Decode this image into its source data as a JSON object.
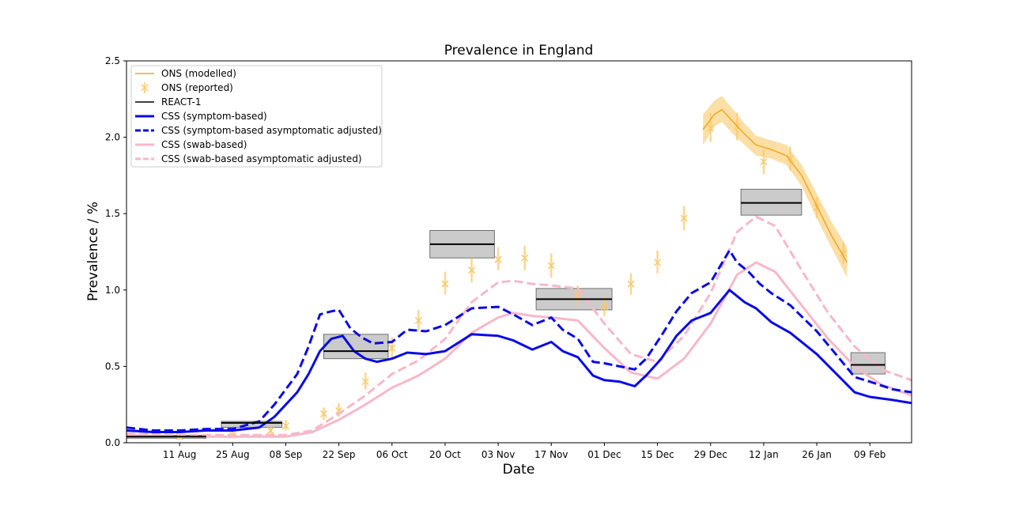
{
  "chart_data": {
    "type": "line",
    "title": "Prevalence in England",
    "xlabel": "Date",
    "ylabel": "Prevalence / %",
    "xlim": [
      "2020-07-28",
      "2021-02-20"
    ],
    "ylim": [
      0,
      2.5
    ],
    "yticks": [
      "0.0",
      "0.5",
      "1.0",
      "1.5",
      "2.0",
      "2.5"
    ],
    "xticks": [
      {
        "date": "2020-08-11",
        "label": "11 Aug"
      },
      {
        "date": "2020-08-25",
        "label": "25 Aug"
      },
      {
        "date": "2020-09-08",
        "label": "08 Sep"
      },
      {
        "date": "2020-09-22",
        "label": "22 Sep"
      },
      {
        "date": "2020-10-06",
        "label": "06 Oct"
      },
      {
        "date": "2020-10-20",
        "label": "20 Oct"
      },
      {
        "date": "2020-11-03",
        "label": "03 Nov"
      },
      {
        "date": "2020-11-17",
        "label": "17 Nov"
      },
      {
        "date": "2020-12-01",
        "label": "01 Dec"
      },
      {
        "date": "2020-12-15",
        "label": "15 Dec"
      },
      {
        "date": "2020-12-29",
        "label": "29 Dec"
      },
      {
        "date": "2021-01-12",
        "label": "12 Jan"
      },
      {
        "date": "2021-01-26",
        "label": "26 Jan"
      },
      {
        "date": "2021-02-09",
        "label": "09 Feb"
      }
    ],
    "grid": false,
    "legend_position": "top-left",
    "colors": {
      "ons": "#f5a623",
      "ons_band": "#f9c96a",
      "react": "#000000",
      "react_box": "#c8c8c8",
      "css_symptom": "#0a0ae6",
      "css_swab": "#f7b8c8"
    },
    "legend": [
      {
        "label": "ONS (modelled)",
        "color": "#f5a623",
        "style": "solid",
        "marker": "none"
      },
      {
        "label": "ONS (reported)",
        "color": "#f9c96a",
        "style": "none",
        "marker": "x"
      },
      {
        "label": "REACT-1",
        "color": "#000000",
        "style": "solid",
        "marker": "none"
      },
      {
        "label": "CSS (symptom-based)",
        "color": "#0a0ae6",
        "style": "solid-thick",
        "marker": "none"
      },
      {
        "label": "CSS (symptom-based asymptomatic adjusted)",
        "color": "#0a0ae6",
        "style": "dashed",
        "marker": "none"
      },
      {
        "label": "CSS (swab-based)",
        "color": "#f7b8c8",
        "style": "solid-thick",
        "marker": "none"
      },
      {
        "label": "CSS (swab-based asymptomatic adjusted)",
        "color": "#f7b8c8",
        "style": "dashed",
        "marker": "none"
      }
    ],
    "series": [
      {
        "name": "CSS (symptom-based)",
        "color": "#0a0ae6",
        "dash": false,
        "points": [
          [
            "2020-07-28",
            0.08
          ],
          [
            "2020-08-04",
            0.07
          ],
          [
            "2020-08-11",
            0.07
          ],
          [
            "2020-08-18",
            0.08
          ],
          [
            "2020-08-25",
            0.08
          ],
          [
            "2020-09-01",
            0.1
          ],
          [
            "2020-09-05",
            0.17
          ],
          [
            "2020-09-08",
            0.25
          ],
          [
            "2020-09-11",
            0.33
          ],
          [
            "2020-09-14",
            0.45
          ],
          [
            "2020-09-17",
            0.6
          ],
          [
            "2020-09-20",
            0.68
          ],
          [
            "2020-09-23",
            0.7
          ],
          [
            "2020-09-26",
            0.6
          ],
          [
            "2020-09-29",
            0.55
          ],
          [
            "2020-10-02",
            0.53
          ],
          [
            "2020-10-06",
            0.55
          ],
          [
            "2020-10-10",
            0.59
          ],
          [
            "2020-10-15",
            0.58
          ],
          [
            "2020-10-20",
            0.6
          ],
          [
            "2020-10-27",
            0.71
          ],
          [
            "2020-11-03",
            0.7
          ],
          [
            "2020-11-07",
            0.67
          ],
          [
            "2020-11-12",
            0.61
          ],
          [
            "2020-11-17",
            0.66
          ],
          [
            "2020-11-20",
            0.6
          ],
          [
            "2020-11-24",
            0.56
          ],
          [
            "2020-11-28",
            0.44
          ],
          [
            "2020-12-01",
            0.41
          ],
          [
            "2020-12-05",
            0.4
          ],
          [
            "2020-12-09",
            0.37
          ],
          [
            "2020-12-12",
            0.44
          ],
          [
            "2020-12-16",
            0.55
          ],
          [
            "2020-12-20",
            0.7
          ],
          [
            "2020-12-24",
            0.8
          ],
          [
            "2020-12-29",
            0.85
          ],
          [
            "2021-01-03",
            1.0
          ],
          [
            "2021-01-07",
            0.92
          ],
          [
            "2021-01-10",
            0.88
          ],
          [
            "2021-01-14",
            0.79
          ],
          [
            "2021-01-19",
            0.72
          ],
          [
            "2021-01-26",
            0.58
          ],
          [
            "2021-02-01",
            0.43
          ],
          [
            "2021-02-05",
            0.33
          ],
          [
            "2021-02-09",
            0.3
          ],
          [
            "2021-02-15",
            0.28
          ],
          [
            "2021-02-20",
            0.26
          ]
        ]
      },
      {
        "name": "CSS (symptom-based asymptomatic adjusted)",
        "color": "#0a0ae6",
        "dash": true,
        "points": [
          [
            "2020-07-28",
            0.1
          ],
          [
            "2020-08-04",
            0.08
          ],
          [
            "2020-08-11",
            0.08
          ],
          [
            "2020-08-18",
            0.09
          ],
          [
            "2020-08-25",
            0.09
          ],
          [
            "2020-09-01",
            0.14
          ],
          [
            "2020-09-05",
            0.25
          ],
          [
            "2020-09-08",
            0.35
          ],
          [
            "2020-09-11",
            0.45
          ],
          [
            "2020-09-14",
            0.63
          ],
          [
            "2020-09-17",
            0.84
          ],
          [
            "2020-09-20",
            0.86
          ],
          [
            "2020-09-22",
            0.87
          ],
          [
            "2020-09-25",
            0.75
          ],
          [
            "2020-09-28",
            0.69
          ],
          [
            "2020-10-01",
            0.65
          ],
          [
            "2020-10-06",
            0.66
          ],
          [
            "2020-10-10",
            0.74
          ],
          [
            "2020-10-15",
            0.73
          ],
          [
            "2020-10-20",
            0.77
          ],
          [
            "2020-10-27",
            0.88
          ],
          [
            "2020-11-03",
            0.89
          ],
          [
            "2020-11-07",
            0.84
          ],
          [
            "2020-11-12",
            0.77
          ],
          [
            "2020-11-17",
            0.82
          ],
          [
            "2020-11-20",
            0.74
          ],
          [
            "2020-11-24",
            0.68
          ],
          [
            "2020-11-28",
            0.53
          ],
          [
            "2020-12-01",
            0.52
          ],
          [
            "2020-12-05",
            0.5
          ],
          [
            "2020-12-09",
            0.48
          ],
          [
            "2020-12-12",
            0.55
          ],
          [
            "2020-12-16",
            0.7
          ],
          [
            "2020-12-20",
            0.86
          ],
          [
            "2020-12-24",
            0.98
          ],
          [
            "2020-12-29",
            1.05
          ],
          [
            "2021-01-03",
            1.26
          ],
          [
            "2021-01-05",
            1.18
          ],
          [
            "2021-01-08",
            1.12
          ],
          [
            "2021-01-11",
            1.04
          ],
          [
            "2021-01-14",
            0.98
          ],
          [
            "2021-01-19",
            0.9
          ],
          [
            "2021-01-26",
            0.73
          ],
          [
            "2021-02-01",
            0.55
          ],
          [
            "2021-02-05",
            0.43
          ],
          [
            "2021-02-09",
            0.4
          ],
          [
            "2021-02-15",
            0.35
          ],
          [
            "2021-02-20",
            0.33
          ]
        ]
      },
      {
        "name": "CSS (swab-based)",
        "color": "#f7b8c8",
        "dash": false,
        "points": [
          [
            "2020-07-28",
            0.05
          ],
          [
            "2020-08-11",
            0.04
          ],
          [
            "2020-08-25",
            0.04
          ],
          [
            "2020-09-08",
            0.04
          ],
          [
            "2020-09-15",
            0.07
          ],
          [
            "2020-09-22",
            0.15
          ],
          [
            "2020-09-29",
            0.25
          ],
          [
            "2020-10-06",
            0.36
          ],
          [
            "2020-10-13",
            0.44
          ],
          [
            "2020-10-20",
            0.55
          ],
          [
            "2020-10-27",
            0.72
          ],
          [
            "2020-11-03",
            0.82
          ],
          [
            "2020-11-07",
            0.85
          ],
          [
            "2020-11-12",
            0.83
          ],
          [
            "2020-11-17",
            0.82
          ],
          [
            "2020-11-24",
            0.8
          ],
          [
            "2020-12-01",
            0.62
          ],
          [
            "2020-12-08",
            0.46
          ],
          [
            "2020-12-15",
            0.42
          ],
          [
            "2020-12-22",
            0.55
          ],
          [
            "2020-12-29",
            0.78
          ],
          [
            "2021-01-05",
            1.1
          ],
          [
            "2021-01-10",
            1.18
          ],
          [
            "2021-01-15",
            1.12
          ],
          [
            "2021-01-22",
            0.9
          ],
          [
            "2021-01-29",
            0.68
          ],
          [
            "2021-02-05",
            0.5
          ],
          [
            "2021-02-12",
            0.38
          ],
          [
            "2021-02-20",
            0.31
          ]
        ]
      },
      {
        "name": "CSS (swab-based asymptomatic adjusted)",
        "color": "#f7b8c8",
        "dash": true,
        "points": [
          [
            "2020-07-28",
            0.06
          ],
          [
            "2020-08-11",
            0.05
          ],
          [
            "2020-08-25",
            0.05
          ],
          [
            "2020-09-08",
            0.05
          ],
          [
            "2020-09-15",
            0.08
          ],
          [
            "2020-09-22",
            0.19
          ],
          [
            "2020-09-29",
            0.31
          ],
          [
            "2020-10-06",
            0.45
          ],
          [
            "2020-10-13",
            0.54
          ],
          [
            "2020-10-20",
            0.68
          ],
          [
            "2020-10-27",
            0.92
          ],
          [
            "2020-11-03",
            1.05
          ],
          [
            "2020-11-07",
            1.06
          ],
          [
            "2020-11-12",
            1.04
          ],
          [
            "2020-11-17",
            1.03
          ],
          [
            "2020-11-24",
            1.01
          ],
          [
            "2020-12-01",
            0.78
          ],
          [
            "2020-12-08",
            0.58
          ],
          [
            "2020-12-15",
            0.53
          ],
          [
            "2020-12-22",
            0.7
          ],
          [
            "2020-12-29",
            0.98
          ],
          [
            "2021-01-05",
            1.38
          ],
          [
            "2021-01-10",
            1.48
          ],
          [
            "2021-01-15",
            1.42
          ],
          [
            "2021-01-22",
            1.13
          ],
          [
            "2021-01-29",
            0.85
          ],
          [
            "2021-02-05",
            0.63
          ],
          [
            "2021-02-12",
            0.48
          ],
          [
            "2021-02-20",
            0.41
          ]
        ]
      },
      {
        "name": "ONS (modelled)",
        "color": "#f5a623",
        "dash": false,
        "points": [
          [
            "2020-12-27",
            2.05
          ],
          [
            "2020-12-30",
            2.15
          ],
          [
            "2021-01-01",
            2.18
          ],
          [
            "2021-01-04",
            2.1
          ],
          [
            "2021-01-07",
            2.02
          ],
          [
            "2021-01-10",
            1.95
          ],
          [
            "2021-01-14",
            1.92
          ],
          [
            "2021-01-18",
            1.88
          ],
          [
            "2021-01-22",
            1.75
          ],
          [
            "2021-01-26",
            1.55
          ],
          [
            "2021-01-30",
            1.35
          ],
          [
            "2021-02-03",
            1.18
          ]
        ],
        "band": [
          [
            "2020-12-27",
            1.95,
            2.15
          ],
          [
            "2020-12-30",
            2.07,
            2.24
          ],
          [
            "2021-01-01",
            2.1,
            2.27
          ],
          [
            "2021-01-04",
            2.02,
            2.18
          ],
          [
            "2021-01-07",
            1.95,
            2.09
          ],
          [
            "2021-01-10",
            1.88,
            2.01
          ],
          [
            "2021-01-14",
            1.86,
            1.98
          ],
          [
            "2021-01-18",
            1.82,
            1.95
          ],
          [
            "2021-01-22",
            1.68,
            1.82
          ],
          [
            "2021-01-26",
            1.47,
            1.63
          ],
          [
            "2021-01-30",
            1.27,
            1.44
          ],
          [
            "2021-02-03",
            1.08,
            1.28
          ]
        ]
      }
    ],
    "ons_reported": [
      [
        "2020-08-11",
        0.04,
        0.02,
        0.07
      ],
      [
        "2020-08-25",
        0.05,
        0.03,
        0.08
      ],
      [
        "2020-09-04",
        0.08,
        0.05,
        0.11
      ],
      [
        "2020-09-08",
        0.11,
        0.08,
        0.15
      ],
      [
        "2020-09-18",
        0.19,
        0.15,
        0.23
      ],
      [
        "2020-09-22",
        0.21,
        0.17,
        0.26
      ],
      [
        "2020-09-29",
        0.4,
        0.35,
        0.46
      ],
      [
        "2020-10-06",
        0.62,
        0.55,
        0.69
      ],
      [
        "2020-10-13",
        0.8,
        0.73,
        0.87
      ],
      [
        "2020-10-20",
        1.04,
        0.97,
        1.12
      ],
      [
        "2020-10-27",
        1.13,
        1.05,
        1.21
      ],
      [
        "2020-11-03",
        1.2,
        1.13,
        1.28
      ],
      [
        "2020-11-10",
        1.21,
        1.13,
        1.29
      ],
      [
        "2020-11-17",
        1.16,
        1.08,
        1.24
      ],
      [
        "2020-11-24",
        0.96,
        0.9,
        1.03
      ],
      [
        "2020-12-01",
        0.89,
        0.83,
        0.96
      ],
      [
        "2020-12-08",
        1.04,
        0.97,
        1.11
      ],
      [
        "2020-12-15",
        1.18,
        1.11,
        1.26
      ],
      [
        "2020-12-22",
        1.47,
        1.39,
        1.55
      ],
      [
        "2020-12-29",
        2.06,
        1.97,
        2.16
      ],
      [
        "2021-01-05",
        2.07,
        1.98,
        2.16
      ],
      [
        "2021-01-12",
        1.84,
        1.76,
        1.92
      ],
      [
        "2021-01-19",
        1.86,
        1.78,
        1.94
      ],
      [
        "2021-01-26",
        1.54,
        1.47,
        1.61
      ],
      [
        "2021-02-02",
        1.24,
        1.17,
        1.31
      ]
    ],
    "react1": [
      {
        "start": "2020-07-28",
        "end": "2020-08-18",
        "value": 0.04,
        "lower": 0.03,
        "upper": 0.05
      },
      {
        "start": "2020-08-22",
        "end": "2020-09-07",
        "value": 0.13,
        "lower": 0.1,
        "upper": 0.14
      },
      {
        "start": "2020-09-18",
        "end": "2020-10-05",
        "value": 0.6,
        "lower": 0.55,
        "upper": 0.71
      },
      {
        "start": "2020-10-16",
        "end": "2020-11-02",
        "value": 1.3,
        "lower": 1.21,
        "upper": 1.39
      },
      {
        "start": "2020-11-13",
        "end": "2020-12-03",
        "value": 0.94,
        "lower": 0.87,
        "upper": 1.01
      },
      {
        "start": "2021-01-06",
        "end": "2021-01-22",
        "value": 1.57,
        "lower": 1.49,
        "upper": 1.66
      },
      {
        "start": "2021-02-04",
        "end": "2021-02-13",
        "value": 0.51,
        "lower": 0.45,
        "upper": 0.59
      }
    ]
  }
}
